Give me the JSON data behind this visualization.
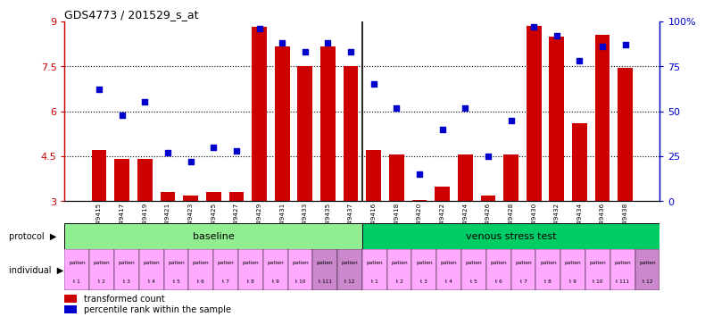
{
  "title": "GDS4773 / 201529_s_at",
  "samples": [
    "GSM949415",
    "GSM949417",
    "GSM949419",
    "GSM949421",
    "GSM949423",
    "GSM949425",
    "GSM949427",
    "GSM949429",
    "GSM949431",
    "GSM949433",
    "GSM949435",
    "GSM949437",
    "GSM949416",
    "GSM949418",
    "GSM949420",
    "GSM949422",
    "GSM949424",
    "GSM949426",
    "GSM949428",
    "GSM949430",
    "GSM949432",
    "GSM949434",
    "GSM949436",
    "GSM949438"
  ],
  "bar_values": [
    4.7,
    4.4,
    4.4,
    3.3,
    3.2,
    3.3,
    3.3,
    8.8,
    8.15,
    7.5,
    8.15,
    7.5,
    4.7,
    4.55,
    3.05,
    3.5,
    4.55,
    3.2,
    4.55,
    8.85,
    8.5,
    5.6,
    8.55,
    7.45
  ],
  "pct_values": [
    62,
    48,
    55,
    27,
    22,
    30,
    28,
    96,
    88,
    83,
    88,
    83,
    65,
    52,
    15,
    40,
    52,
    25,
    45,
    97,
    92,
    78,
    86,
    87
  ],
  "bar_color": "#CC0000",
  "pct_color": "#0000CC",
  "ylim_left": [
    3,
    9
  ],
  "ylim_right": [
    0,
    100
  ],
  "yticks_left": [
    3,
    4.5,
    6,
    7.5,
    9
  ],
  "yticks_right": [
    0,
    25,
    50,
    75,
    100
  ],
  "ytick_labels_right": [
    "0",
    "25",
    "50",
    "75",
    "100%"
  ],
  "hlines": [
    4.5,
    6.0,
    7.5
  ],
  "baseline_label": "baseline",
  "stress_label": "venous stress test",
  "baseline_color": "#90EE90",
  "stress_color": "#00CC66",
  "individual_colors": [
    "#FFAAFF",
    "#FFAAFF",
    "#FFAAFF",
    "#FFAAFF",
    "#FFAAFF",
    "#FFAAFF",
    "#FFAAFF",
    "#FFAAFF",
    "#FFAAFF",
    "#FFAAFF",
    "#CC88CC",
    "#CC88CC",
    "#FFAAFF",
    "#FFAAFF",
    "#FFAAFF",
    "#FFAAFF",
    "#FFAAFF",
    "#FFAAFF",
    "#FFAAFF",
    "#FFAAFF",
    "#FFAAFF",
    "#FFAAFF",
    "#FFAAFF",
    "#CC88CC"
  ],
  "individual_labels": [
    "patien\nt 1",
    "patien\nt 2",
    "patien\nt 3",
    "patien\nt 4",
    "patien\nt 5",
    "patien\nt 6",
    "patien\nt 7",
    "patien\nt 8",
    "patien\nt 9",
    "patien\nt 10",
    "patien\nt 111",
    "patien\nt 12",
    "patien\nt 1",
    "patien\nt 2",
    "patien\nt 3",
    "patien\nt 4",
    "patien\nt 5",
    "patien\nt 6",
    "patien\nt 7",
    "patien\nt 8",
    "patien\nt 9",
    "patien\nt 10",
    "patien\nt 111",
    "patien\nt 12"
  ],
  "legend_bar_label": "transformed count",
  "legend_pct_label": "percentile rank within the sample",
  "n_baseline": 12,
  "n_stress": 12
}
